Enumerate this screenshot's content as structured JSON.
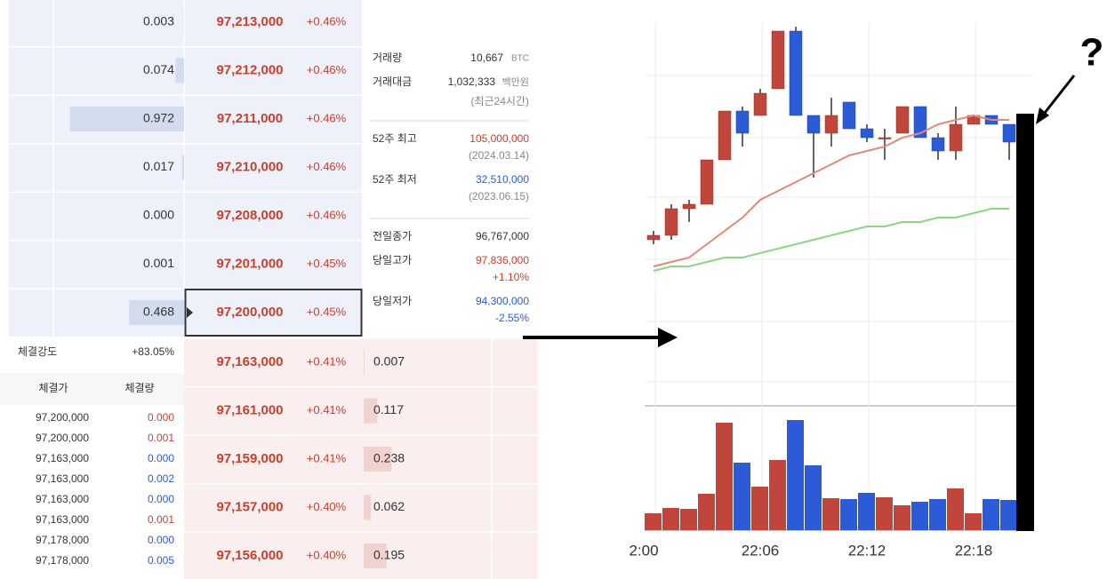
{
  "order_book": {
    "asks": [
      {
        "quantity": "0.003",
        "price": "97,213,000",
        "change": "+0.46%"
      },
      {
        "quantity": "0.074",
        "price": "97,212,000",
        "change": "+0.46%"
      },
      {
        "quantity": "0.972",
        "price": "97,211,000",
        "change": "+0.46%"
      },
      {
        "quantity": "0.017",
        "price": "97,210,000",
        "change": "+0.46%"
      },
      {
        "quantity": "0.000",
        "price": "97,208,000",
        "change": "+0.46%"
      },
      {
        "quantity": "0.001",
        "price": "97,201,000",
        "change": "+0.45%"
      },
      {
        "quantity": "0.468",
        "price": "97,200,000",
        "change": "+0.45%"
      }
    ],
    "bids": [
      {
        "price": "97,163,000",
        "change": "+0.41%",
        "quantity": "0.007"
      },
      {
        "price": "97,161,000",
        "change": "+0.41%",
        "quantity": "0.117"
      },
      {
        "price": "97,159,000",
        "change": "+0.41%",
        "quantity": "0.238"
      },
      {
        "price": "97,157,000",
        "change": "+0.40%",
        "quantity": "0.062"
      },
      {
        "price": "97,156,000",
        "change": "+0.40%",
        "quantity": "0.195"
      }
    ]
  },
  "trade_strength": {
    "label": "체결강도",
    "value": "+83.05%"
  },
  "trades": {
    "headers": [
      "체결가",
      "체결량"
    ],
    "rows": [
      {
        "price": "97,200,000",
        "quantity": "0.000",
        "color": "#c0453a"
      },
      {
        "price": "97,200,000",
        "quantity": "0.001",
        "color": "#c0453a"
      },
      {
        "price": "97,163,000",
        "quantity": "0.000",
        "color": "#2b5bd6"
      },
      {
        "price": "97,163,000",
        "quantity": "0.002",
        "color": "#2b5bd6"
      },
      {
        "price": "97,163,000",
        "quantity": "0.000",
        "color": "#2b5bd6"
      },
      {
        "price": "97,163,000",
        "quantity": "0.001",
        "color": "#c0453a"
      },
      {
        "price": "97,178,000",
        "quantity": "0.000",
        "color": "#2b5bd6"
      },
      {
        "price": "97,178,000",
        "quantity": "0.005",
        "color": "#2b5bd6"
      }
    ]
  },
  "market_info": {
    "volume": {
      "label": "거래량",
      "value": "10,667",
      "unit": "BTC"
    },
    "turnover": {
      "label": "거래대금",
      "value": "1,032,333",
      "unit": "백만원",
      "note": "(최근24시간)"
    },
    "high_52w": {
      "label": "52주 최고",
      "value": "105,000,000",
      "date": "(2024.03.14)"
    },
    "low_52w": {
      "label": "52주 최저",
      "value": "32,510,000",
      "date": "(2023.06.15)"
    },
    "prev_close": {
      "label": "전일종가",
      "value": "96,767,000"
    },
    "day_high": {
      "label": "당일고가",
      "value": "97,836,000",
      "change": "+1.10%"
    },
    "day_low": {
      "label": "당일저가",
      "value": "94,300,000",
      "change": "-2.55%"
    }
  },
  "chart_data": {
    "type": "candlestick",
    "categories": [
      "2:00",
      null,
      null,
      null,
      null,
      null,
      "22:06",
      null,
      null,
      null,
      null,
      null,
      "22:12",
      null,
      null,
      null,
      null,
      null,
      "22:18",
      null,
      null
    ],
    "open": [
      96920000,
      96930000,
      96990000,
      97000000,
      97100000,
      97210000,
      97200000,
      97260000,
      97390000,
      97200000,
      97160000,
      97230000,
      97170000,
      97150000,
      97160000,
      97220000,
      97150000,
      97120000,
      97180000,
      97200000,
      97180000
    ],
    "high": [
      96940000,
      97000000,
      97010000,
      97100000,
      97210000,
      97220000,
      97260000,
      97390000,
      97400000,
      97200000,
      97240000,
      97230000,
      97180000,
      97170000,
      97220000,
      97220000,
      97160000,
      97220000,
      97200000,
      97200000,
      97180000
    ],
    "low": [
      96910000,
      96920000,
      96960000,
      97000000,
      97100000,
      97130000,
      97200000,
      97260000,
      97200000,
      97060000,
      97130000,
      97170000,
      97140000,
      97100000,
      97160000,
      97150000,
      97100000,
      97100000,
      97180000,
      97180000,
      97100000
    ],
    "close": [
      96930000,
      96990000,
      97000000,
      97100000,
      97210000,
      97160000,
      97250000,
      97390000,
      97200000,
      97160000,
      97200000,
      97170000,
      97150000,
      97150000,
      97220000,
      97150000,
      97120000,
      97180000,
      97200000,
      97180000,
      97140000
    ],
    "ylim": [
      96700000,
      97400000
    ],
    "up_color": "#c0453a",
    "down_color": "#2b5bd6",
    "moving_averages": [
      {
        "color": "#e3887c",
        "values": [
          96860000,
          96870000,
          96880000,
          96910000,
          96940000,
          96970000,
          97010000,
          97030000,
          97050000,
          97070000,
          97090000,
          97110000,
          97120000,
          97130000,
          97150000,
          97160000,
          97180000,
          97190000,
          97200000,
          97190000,
          97190000
        ]
      },
      {
        "color": "#8ed487",
        "values": [
          96850000,
          96860000,
          96860000,
          96870000,
          96880000,
          96880000,
          96890000,
          96900000,
          96910000,
          96920000,
          96930000,
          96940000,
          96950000,
          96950000,
          96960000,
          96960000,
          96970000,
          96970000,
          96980000,
          96990000,
          96990000
        ]
      }
    ],
    "volume": {
      "values": [
        19,
        25,
        24,
        41,
        121,
        76,
        49,
        79,
        124,
        73,
        36,
        35,
        42,
        37,
        28,
        32,
        35,
        47,
        19,
        35,
        34
      ],
      "ylim": [
        0,
        140
      ]
    }
  },
  "annotation": "?"
}
